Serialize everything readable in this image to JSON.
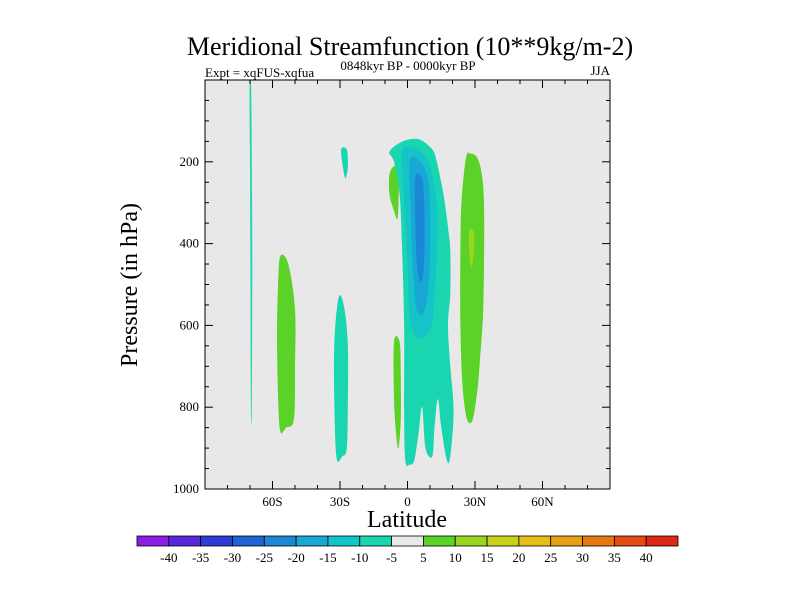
{
  "chart_data": {
    "type": "contour",
    "title": "Meridional Streamfunction (10**9kg/m-2)",
    "experiment_label": "Expt = xqFUS-xqfua",
    "period_label": "0848kyr BP - 0000kyr BP",
    "season_label": "JJA",
    "xlabel": "Latitude",
    "ylabel": "Pressure (in hPa)",
    "xlim": [
      -90,
      90
    ],
    "ylim": [
      1000,
      0
    ],
    "x_ticks": [
      {
        "value": -60,
        "label": "60S"
      },
      {
        "value": -30,
        "label": "30S"
      },
      {
        "value": 0,
        "label": "0"
      },
      {
        "value": 30,
        "label": "30N"
      },
      {
        "value": 60,
        "label": "60N"
      }
    ],
    "y_ticks": [
      {
        "value": 200,
        "label": "200"
      },
      {
        "value": 400,
        "label": "400"
      },
      {
        "value": 600,
        "label": "600"
      },
      {
        "value": 800,
        "label": "800"
      },
      {
        "value": 1000,
        "label": "1000"
      }
    ],
    "colorbar": {
      "levels": [
        -40,
        -35,
        -30,
        -25,
        -20,
        -15,
        -10,
        -5,
        5,
        10,
        15,
        20,
        25,
        30,
        35,
        40
      ],
      "colors": [
        "#8a1ee6",
        "#5a28dc",
        "#2d3cd2",
        "#1e64d2",
        "#1a88d6",
        "#18a8d4",
        "#14c4c8",
        "#1ad6b0",
        "#e8e8e8",
        "#5ad228",
        "#9ad61e",
        "#c8d21a",
        "#e6be14",
        "#e6a014",
        "#e67814",
        "#e64a14",
        "#dc2814"
      ]
    },
    "regions": [
      {
        "name": "south-polar-thin-negative",
        "value": -7,
        "points": [
          [
            -69.5,
            20
          ],
          [
            -69.2,
            200
          ],
          [
            -69.0,
            450
          ],
          [
            -69.2,
            800
          ],
          [
            -69.6,
            800
          ],
          [
            -69.8,
            450
          ],
          [
            -70.0,
            200
          ],
          [
            -70.2,
            20
          ]
        ]
      },
      {
        "name": "southern-positive-cell",
        "value": 7,
        "points": [
          [
            -56.5,
            430
          ],
          [
            -53,
            450
          ],
          [
            -50,
            560
          ],
          [
            -50,
            700
          ],
          [
            -50.5,
            830
          ],
          [
            -54,
            850
          ],
          [
            -56.5,
            860
          ],
          [
            -57.5,
            780
          ],
          [
            -58,
            620
          ],
          [
            -57.5,
            500
          ]
        ]
      },
      {
        "name": "southern-negative-cell",
        "value": -7,
        "points": [
          [
            -30.5,
            530
          ],
          [
            -28,
            560
          ],
          [
            -26.5,
            650
          ],
          [
            -26.5,
            780
          ],
          [
            -27,
            900
          ],
          [
            -29,
            920
          ],
          [
            -31.5,
            925
          ],
          [
            -32.5,
            800
          ],
          [
            -32.5,
            640
          ]
        ]
      },
      {
        "name": "negative-upper-spot",
        "value": -7,
        "points": [
          [
            -29.5,
            170
          ],
          [
            -27,
            170
          ],
          [
            -26.5,
            210
          ],
          [
            -27.5,
            240
          ],
          [
            -28.5,
            220
          ]
        ]
      },
      {
        "name": "positive-upper-blob",
        "value": 7,
        "points": [
          [
            -8,
            230
          ],
          [
            -5.5,
            210
          ],
          [
            -4,
            240
          ],
          [
            -4,
            300
          ],
          [
            -4.5,
            340
          ],
          [
            -6,
            320
          ],
          [
            -8,
            280
          ]
        ]
      },
      {
        "name": "positive-lower-blob",
        "value": 7,
        "points": [
          [
            -6,
            640
          ],
          [
            -3.5,
            640
          ],
          [
            -3,
            720
          ],
          [
            -3,
            830
          ],
          [
            -4,
            900
          ],
          [
            -5,
            870
          ],
          [
            -6,
            780
          ]
        ]
      },
      {
        "name": "equatorial-negative-cell",
        "value": -7,
        "points": [
          [
            -8,
            175
          ],
          [
            -2,
            150
          ],
          [
            5,
            145
          ],
          [
            11,
            170
          ],
          [
            13,
            200
          ],
          [
            16,
            280
          ],
          [
            18,
            360
          ],
          [
            19,
            420
          ],
          [
            19,
            520
          ],
          [
            18,
            600
          ],
          [
            19,
            700
          ],
          [
            20.5,
            810
          ],
          [
            19,
            920
          ],
          [
            17.5,
            930
          ],
          [
            15,
            850
          ],
          [
            13.5,
            780
          ],
          [
            12,
            850
          ],
          [
            11,
            920
          ],
          [
            8,
            900
          ],
          [
            6.5,
            800
          ],
          [
            5,
            860
          ],
          [
            3,
            930
          ],
          [
            1,
            940
          ],
          [
            -1,
            930
          ],
          [
            -1.5,
            800
          ],
          [
            -1.5,
            600
          ],
          [
            -2.5,
            400
          ],
          [
            -3.5,
            280
          ],
          [
            -6,
            200
          ]
        ]
      },
      {
        "name": "equatorial-negative-core-1",
        "value": -12,
        "points": [
          [
            -2.5,
            175
          ],
          [
            2,
            165
          ],
          [
            6,
            175
          ],
          [
            10,
            210
          ],
          [
            13,
            300
          ],
          [
            13,
            420
          ],
          [
            12,
            530
          ],
          [
            11,
            590
          ],
          [
            9,
            620
          ],
          [
            4,
            630
          ],
          [
            1,
            580
          ],
          [
            0,
            450
          ],
          [
            -1.5,
            300
          ]
        ]
      },
      {
        "name": "equatorial-negative-core-2",
        "value": -17,
        "points": [
          [
            1,
            200
          ],
          [
            5,
            195
          ],
          [
            9,
            240
          ],
          [
            10,
            320
          ],
          [
            10,
            430
          ],
          [
            9,
            520
          ],
          [
            7,
            570
          ],
          [
            4,
            560
          ],
          [
            2.5,
            470
          ],
          [
            1.5,
            330
          ]
        ]
      },
      {
        "name": "equatorial-negative-core-3",
        "value": -22,
        "points": [
          [
            3.5,
            240
          ],
          [
            6.5,
            240
          ],
          [
            7.5,
            310
          ],
          [
            7.5,
            420
          ],
          [
            6.5,
            490
          ],
          [
            4.5,
            470
          ],
          [
            3.5,
            360
          ]
        ]
      },
      {
        "name": "northern-positive-cell",
        "value": 7,
        "points": [
          [
            26,
            190
          ],
          [
            28,
            180
          ],
          [
            31,
            190
          ],
          [
            33,
            230
          ],
          [
            34,
            300
          ],
          [
            34,
            450
          ],
          [
            33.5,
            580
          ],
          [
            32,
            700
          ],
          [
            31,
            760
          ],
          [
            29,
            830
          ],
          [
            26.5,
            830
          ],
          [
            24.5,
            750
          ],
          [
            23.5,
            600
          ],
          [
            23.5,
            420
          ],
          [
            24,
            300
          ]
        ]
      },
      {
        "name": "northern-positive-core",
        "value": 12,
        "points": [
          [
            27.5,
            370
          ],
          [
            29.5,
            370
          ],
          [
            29.5,
            420
          ],
          [
            28.5,
            460
          ],
          [
            27.5,
            430
          ]
        ]
      }
    ]
  }
}
